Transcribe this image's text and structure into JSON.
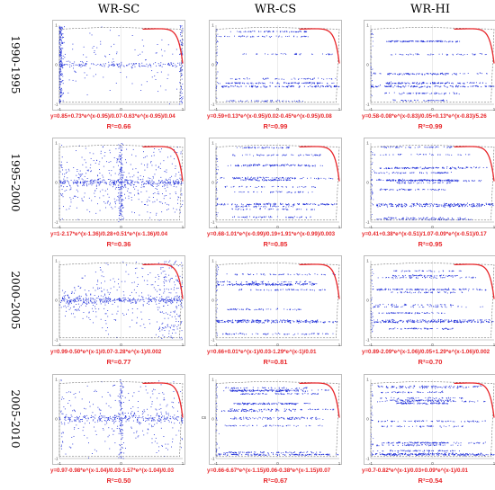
{
  "colors": {
    "points": "#1f2fd8",
    "fit": "#e8262a",
    "hull": "#555555",
    "frame": "#bdbdbd"
  },
  "columns": [
    {
      "id": "sc",
      "label": "WR-SC"
    },
    {
      "id": "cs",
      "label": "WR-CS"
    },
    {
      "id": "hi",
      "label": "WR-HI"
    }
  ],
  "rows": [
    {
      "id": "r1",
      "label": "1990-1995"
    },
    {
      "id": "r2",
      "label": "1995-2000"
    },
    {
      "id": "r3",
      "label": "2000-2005"
    },
    {
      "id": "r4",
      "label": "2005-2010"
    }
  ],
  "panels": [
    [
      {
        "equation": "y=0.85+0.73*e^(x-0.95)/0.07-0.63*e^(x-0.95)/0.04",
        "r2": "R²=0.66"
      },
      {
        "equation": "y=0.59+0.13*e^(x-0.95)/0.02-0.45*e^(x-0.95)/0.08",
        "r2": "R²=0.99"
      },
      {
        "equation": "y=0.58-0.08*e^(x-0.83)/0.05+0.13*e^(x-0.83)/5.26",
        "r2": "R²=0.99"
      }
    ],
    [
      {
        "equation": "y=1-2.17*e^(x-1.36)/0.28+0.51*e^(x-1.36)/0.04",
        "r2": "R²=0.36"
      },
      {
        "equation": "y=0.68-1.01*e^(x-0.99)/0.19+1.91*e^(x-0.99)/0.003",
        "r2": "R²=0.85"
      },
      {
        "equation": "y=0.41+0.38*e^(x-0.51)/1.07-0.09*e^(x-0.51)/0.17",
        "r2": "R²=0.95"
      }
    ],
    [
      {
        "equation": "y=0.99-0.50*e^(x-1)/0.07-3.28*e^(x-1)/0.002",
        "r2": "R²=0.77"
      },
      {
        "equation": "y=0.66+0.01*e^(x-1)/0.03-1.29*e^(x-1)/0.01",
        "r2": "R²=0.81"
      },
      {
        "equation": "y=0.89-2.09*e^(x-1.06)/0.05+1.29*e^(x-1.06)/0.002",
        "r2": "R²=0.70"
      }
    ],
    [
      {
        "equation": "y=0.97-0.98*e^(x-1.04)/0.03-1.57*e^(x-1.04)/0.03",
        "r2": "R²=0.50"
      },
      {
        "equation": "y=0.66-6.67*e^(x-1.15)/0.06-0.38*e^(x-1.15)/0.07",
        "r2": "R²=0.67"
      },
      {
        "equation": "y=0.7-0.82*e^(x-1)/0.03+0.09*e^(x-1)/0.01",
        "r2": "R²=0.54"
      }
    ]
  ],
  "axis_ticks": {
    "x": [
      "-1",
      "0",
      "1"
    ],
    "y": [
      "-1",
      "0",
      "1"
    ]
  },
  "ylabel_extra": "cs",
  "chart_data": {
    "type": "scatter",
    "xlim": [
      -1,
      1
    ],
    "ylim": [
      -1,
      1
    ],
    "columns": [
      "WR-SC",
      "WR-CS",
      "WR-HI"
    ],
    "rows": [
      "1990-1995",
      "1995-2000",
      "2000-2005",
      "2005-2010"
    ],
    "fit_curve": "red exponential fit, upper-right region",
    "hull": "dashed grey boundary",
    "grid": false
  }
}
